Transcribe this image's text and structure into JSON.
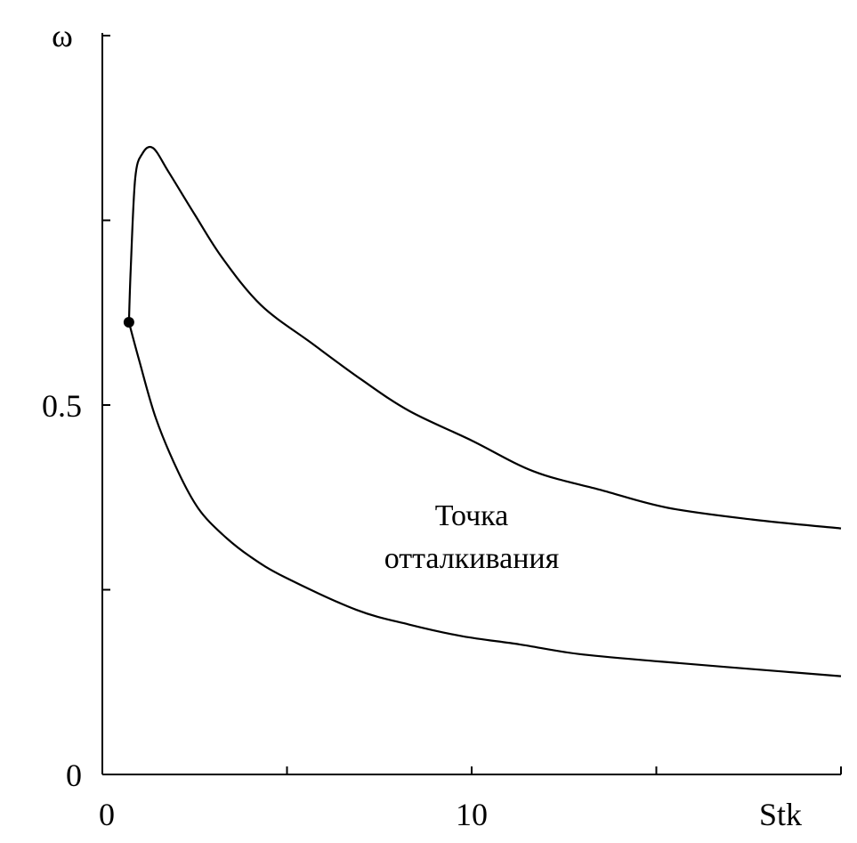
{
  "chart_data": {
    "type": "line",
    "title": "",
    "xlabel": "Stk",
    "ylabel": "ω",
    "xlim": [
      0,
      20
    ],
    "ylim": [
      0,
      1.0
    ],
    "x_ticks": [
      0,
      5,
      10,
      15,
      20
    ],
    "y_ticks": [
      0,
      0.25,
      0.5,
      0.75,
      1.0
    ],
    "x_tick_labels": [
      {
        "value": 0,
        "label": "0"
      },
      {
        "value": 10,
        "label": "10"
      }
    ],
    "y_tick_labels": [
      {
        "value": 0,
        "label": "0"
      },
      {
        "value": 0.5,
        "label": "0.5"
      }
    ],
    "grid": false,
    "series": [
      {
        "name": "upper-branch",
        "x": [
          0.72,
          0.77,
          0.89,
          1.08,
          1.37,
          1.8,
          2.5,
          3.25,
          4.3,
          5.66,
          7.0,
          8.31,
          10.0,
          11.69,
          13.5,
          15.3,
          17.6,
          20.0
        ],
        "y": [
          0.612,
          0.686,
          0.807,
          0.84,
          0.848,
          0.815,
          0.758,
          0.699,
          0.635,
          0.584,
          0.535,
          0.492,
          0.452,
          0.41,
          0.385,
          0.361,
          0.345,
          0.333
        ]
      },
      {
        "name": "lower-branch",
        "x": [
          0.72,
          1.0,
          1.45,
          2.05,
          2.6,
          3.25,
          4.0,
          4.94,
          6.87,
          8.3,
          9.76,
          11.3,
          12.9,
          15.06,
          17.5,
          20.0
        ],
        "y": [
          0.612,
          0.56,
          0.482,
          0.41,
          0.36,
          0.325,
          0.295,
          0.267,
          0.223,
          0.203,
          0.187,
          0.176,
          0.163,
          0.153,
          0.143,
          0.133
        ]
      }
    ],
    "points": [
      {
        "name": "bifurcation-point",
        "x": 0.72,
        "y": 0.612
      }
    ],
    "annotations": [
      {
        "text_line1": "Точка",
        "text_line2": "отталкивания",
        "x": 10.0,
        "y": 0.3
      }
    ]
  }
}
